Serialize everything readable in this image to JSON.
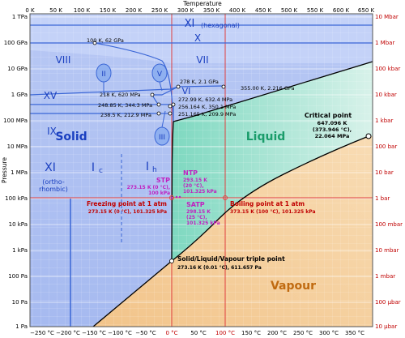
{
  "axes": {
    "temperature_title": "Temperature",
    "pressure_title": "Pressure",
    "kelvin_ticks": [
      "0 K",
      "50 K",
      "100 K",
      "150 K",
      "200 K",
      "250 K",
      "300 K",
      "350 K",
      "400 K",
      "450 K",
      "500 K",
      "550 K",
      "600 K",
      "650 K"
    ],
    "celsius_ticks": [
      "−250 °C",
      "−200 °C",
      "−150 °C",
      "−100 °C",
      "−50 °C",
      "0 °C",
      "50 °C",
      "100 °C",
      "150 °C",
      "200 °C",
      "250 °C",
      "300 °C",
      "350 °C"
    ],
    "pa_ticks": [
      "1 TPa",
      "100 GPa",
      "10 GPa",
      "1 GPa",
      "100 MPa",
      "10 MPa",
      "1 MPa",
      "100 kPa",
      "10 kPa",
      "1 kPa",
      "100 Pa",
      "10 Pa",
      "1 Pa"
    ],
    "bar_ticks": [
      "10 Mbar",
      "1 Mbar",
      "100 kbar",
      "10 kbar",
      "1 kbar",
      "100 bar",
      "10 bar",
      "1 bar",
      "100 mbar",
      "10 mbar",
      "1 mbar",
      "100 μbar",
      "10 μbar"
    ]
  },
  "regions": {
    "solid": "Solid",
    "liquid": "Liquid",
    "vapour": "Vapour"
  },
  "phases": {
    "xi_hex": "XI",
    "xi_hex_sub": "(hexagonal)",
    "x": "X",
    "viii": "VIII",
    "vii": "VII",
    "ii": "II",
    "v": "V",
    "vi": "VI",
    "xv": "XV",
    "ix": "IX",
    "iii": "III",
    "xi_ortho": "XI",
    "xi_ortho_sub": "(ortho-\nrhombic)",
    "ic_main": "I",
    "ic_sub": "c",
    "ih_main": "I",
    "ih_sub": "h"
  },
  "annotations": {
    "p100k": "100 K, 62 GPa",
    "p278": "278 K, 2.1 GPa",
    "p355": "355.00 K, 2.216 GPa",
    "p218": "218 K, 620 MPa",
    "p272": "272.99 K, 632.4 MPa",
    "p248": "248.85 K, 344.3 MPa",
    "p256": "256.164 K, 350.1 MPa",
    "p238": "238.5 K, 212.9 MPa",
    "p251": "251.165 K, 209.9 MPa",
    "critical_title": "Critical point",
    "critical_l1": "647.096 K",
    "critical_l2": "(373.946 °C),",
    "critical_l3": "22.064 MPa",
    "stp_title": "STP",
    "stp_l1": "273.15 K (0 °C),",
    "stp_l2": "100 kPa",
    "ntp_title": "NTP",
    "ntp_l1": "293.15 K",
    "ntp_l2": "(20 °C),",
    "ntp_l3": "101.325 kPa",
    "satp_title": "SATP",
    "satp_l1": "298.15 K",
    "satp_l2": "(25 °C),",
    "satp_l3": "101.325 kPa",
    "freeze_title": "Freezing point at 1 atm",
    "freeze_val": "273.15 K (0 °C), 101.325 kPa",
    "boil_title": "Boiling point at 1 atm",
    "boil_val": "373.15 K (100 °C), 101.325 kPa",
    "triple_title": "Solid/Liquid/Vapour triple point",
    "triple_val": "273.16 K (0.01 °C), 611.657 Pa"
  },
  "colors": {
    "solid": "#a9bdf2",
    "liquid": "#8fdcc8",
    "vapour": "#f4c98e",
    "boundary": "#000000",
    "phase_line": "#3a66d6",
    "ref_line": "#e04040",
    "ntp_purple": "#c020c0",
    "red_text": "#c00000"
  }
}
